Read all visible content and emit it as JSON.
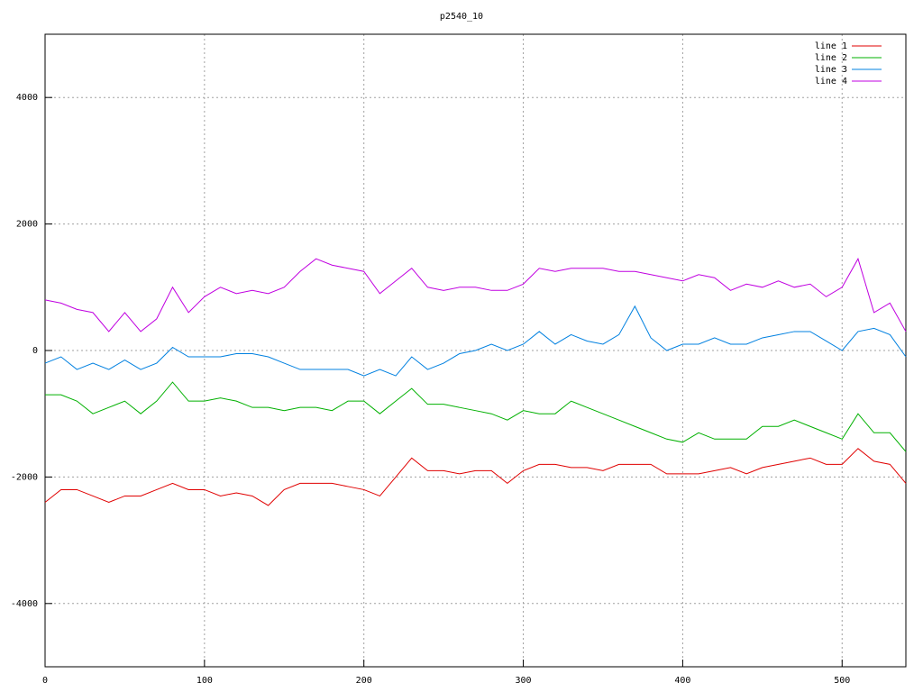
{
  "chart_data": {
    "type": "line",
    "title": "p2540_10",
    "x": [
      0,
      10,
      20,
      30,
      40,
      50,
      60,
      70,
      80,
      90,
      100,
      110,
      120,
      130,
      140,
      150,
      160,
      170,
      180,
      190,
      200,
      210,
      220,
      230,
      240,
      250,
      260,
      270,
      280,
      290,
      300,
      310,
      320,
      330,
      340,
      350,
      360,
      370,
      380,
      390,
      400,
      410,
      420,
      430,
      440,
      450,
      460,
      470,
      480,
      490,
      500,
      510,
      520,
      530,
      540
    ],
    "series": [
      {
        "name": "line 1",
        "color": "#e00000",
        "values": [
          -2400,
          -2200,
          -2200,
          -2300,
          -2400,
          -2300,
          -2300,
          -2200,
          -2100,
          -2200,
          -2200,
          -2300,
          -2250,
          -2300,
          -2450,
          -2200,
          -2100,
          -2100,
          -2100,
          -2150,
          -2200,
          -2300,
          -2000,
          -1700,
          -1900,
          -1900,
          -1950,
          -1900,
          -1900,
          -2100,
          -1900,
          -1800,
          -1800,
          -1850,
          -1850,
          -1900,
          -1800,
          -1800,
          -1800,
          -1950,
          -1950,
          -1950,
          -1900,
          -1850,
          -1950,
          -1850,
          -1800,
          -1750,
          -1700,
          -1800,
          -1800,
          -1550,
          -1750,
          -1800,
          -2100
        ]
      },
      {
        "name": "line 2",
        "color": "#00b000",
        "values": [
          -700,
          -700,
          -800,
          -1000,
          -900,
          -800,
          -1000,
          -800,
          -500,
          -800,
          -800,
          -750,
          -800,
          -900,
          -900,
          -950,
          -900,
          -900,
          -950,
          -800,
          -800,
          -1000,
          -800,
          -600,
          -850,
          -850,
          -900,
          -950,
          -1000,
          -1100,
          -950,
          -1000,
          -1000,
          -800,
          -900,
          -1000,
          -1100,
          -1200,
          -1300,
          -1400,
          -1450,
          -1300,
          -1400,
          -1400,
          -1400,
          -1200,
          -1200,
          -1100,
          -1200,
          -1300,
          -1400,
          -1000,
          -1300,
          -1300,
          -1600
        ]
      },
      {
        "name": "line 3",
        "color": "#0080e0",
        "values": [
          -200,
          -100,
          -300,
          -200,
          -300,
          -150,
          -300,
          -200,
          50,
          -100,
          -100,
          -100,
          -50,
          -50,
          -100,
          -200,
          -300,
          -300,
          -300,
          -300,
          -400,
          -300,
          -400,
          -100,
          -300,
          -200,
          -50,
          0,
          100,
          0,
          100,
          300,
          100,
          250,
          150,
          100,
          250,
          700,
          200,
          0,
          100,
          100,
          200,
          100,
          100,
          200,
          250,
          300,
          300,
          150,
          0,
          300,
          350,
          250,
          -100
        ]
      },
      {
        "name": "line 4",
        "color": "#c000e0",
        "values": [
          800,
          750,
          650,
          600,
          300,
          600,
          300,
          500,
          1000,
          600,
          850,
          1000,
          900,
          950,
          900,
          1000,
          1250,
          1450,
          1350,
          1300,
          1250,
          900,
          1100,
          1300,
          1000,
          950,
          1000,
          1000,
          950,
          950,
          1050,
          1300,
          1250,
          1300,
          1300,
          1300,
          1250,
          1250,
          1200,
          1150,
          1100,
          1200,
          1150,
          950,
          1050,
          1000,
          1100,
          1000,
          1050,
          850,
          1000,
          1450,
          600,
          750,
          300
        ]
      }
    ],
    "xlim": [
      0,
      540
    ],
    "ylim": [
      -5000,
      5000
    ],
    "xticks": [
      0,
      100,
      200,
      300,
      400,
      500
    ],
    "yticks": [
      -4000,
      -2000,
      0,
      2000,
      4000
    ],
    "grid": true,
    "legend": "top-right"
  }
}
